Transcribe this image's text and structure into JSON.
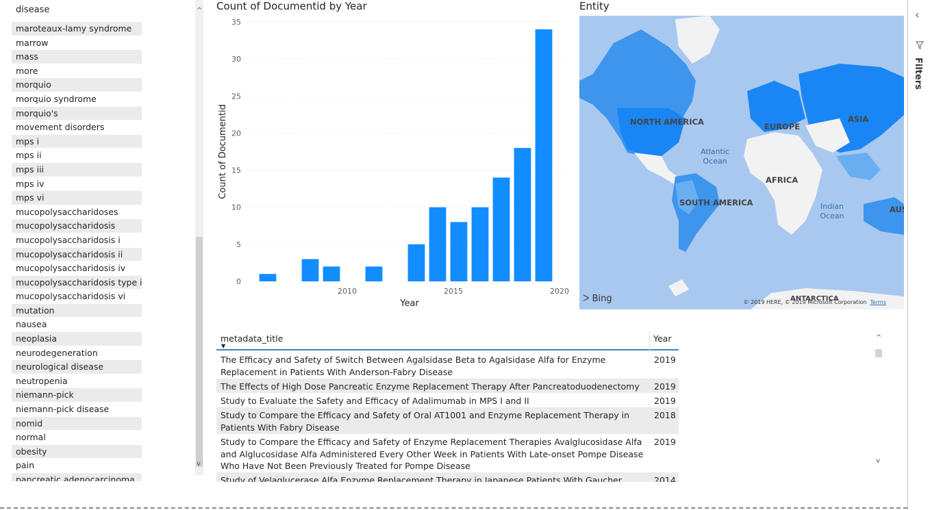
{
  "slicer": {
    "header": "disease",
    "items": [
      "maroteaux-lamy syndrome",
      "marrow",
      "mass",
      "more",
      "morquio",
      "morquio syndrome",
      "morquio's",
      "movement disorders",
      "mps i",
      "mps ii",
      "mps iii",
      "mps iv",
      "mps vi",
      "mucopolysaccharidoses",
      "mucopolysaccharidosis",
      "mucopolysaccharidosis i",
      "mucopolysaccharidosis ii",
      "mucopolysaccharidosis iv",
      "mucopolysaccharidosis type i",
      "mucopolysaccharidosis vi",
      "mutation",
      "nausea",
      "neoplasia",
      "neurodegeneration",
      "neurological disease",
      "neutropenia",
      "niemann-pick",
      "niemann-pick disease",
      "nomid",
      "normal",
      "obesity",
      "pain",
      "pancreatic adenocarcinoma"
    ]
  },
  "chart_title": "Count of Documentid by Year",
  "chart_data": {
    "type": "bar",
    "title": "Count of Documentid by Year",
    "xlabel": "Year",
    "ylabel": "Count of Documentid",
    "x": [
      2006,
      2008,
      2009,
      2011,
      2013,
      2014,
      2015,
      2016,
      2017,
      2018,
      2019
    ],
    "values": [
      1,
      3,
      2,
      2,
      5,
      10,
      8,
      10,
      14,
      18,
      34
    ],
    "xlim": [
      2005,
      2020
    ],
    "ylim": [
      0,
      35
    ],
    "xticks": [
      "2010",
      "2015",
      "2020"
    ],
    "yticks": [
      "0",
      "5",
      "10",
      "15",
      "20",
      "25",
      "30",
      "35"
    ],
    "color": "#118dff"
  },
  "map": {
    "title": "Entity",
    "labels": [
      "NORTH AMERICA",
      "EUROPE",
      "ASIA",
      "AFRICA",
      "SOUTH AMERICA",
      "AUSTR"
    ],
    "oceans": [
      "Atlantic Ocean",
      "Indian Ocean"
    ],
    "antarctica": "ANTARCTICA",
    "bing": "Bing",
    "copyright": "© 2019 HERE, © 2019 Microsoft Corporation",
    "terms": "Terms"
  },
  "table": {
    "col_title": "metadata_title",
    "col_year": "Year",
    "rows": [
      {
        "title": "The Efficacy and Safety of Switch Between Agalsidase Beta to Agalsidase Alfa for Enzyme Replacement in Patients With Anderson-Fabry Disease",
        "year": "2019"
      },
      {
        "title": "The Effects of High Dose Pancreatic Enzyme Replacement Therapy After Pancreatoduodenectomy",
        "year": "2019"
      },
      {
        "title": "Study to Evaluate the Safety and Efficacy of Adalimumab in MPS I and II",
        "year": "2019"
      },
      {
        "title": "Study to Compare the Efficacy and Safety of Oral AT1001 and Enzyme Replacement Therapy in Patients With Fabry Disease",
        "year": "2018"
      },
      {
        "title": "Study to Compare the Efficacy and Safety of Enzyme Replacement Therapies Avalglucosidase Alfa and Alglucosidase Alfa Administered Every Other Week in Patients With Late-onset Pompe Disease Who Have Not Been Previously Treated for Pompe Disease",
        "year": "2019"
      },
      {
        "title": "Study of Velaglucerase Alfa Enzyme Replacement Therapy in Japanese Patients With Gaucher Disease",
        "year": "2014"
      }
    ]
  },
  "filters": {
    "label": "Filters"
  }
}
